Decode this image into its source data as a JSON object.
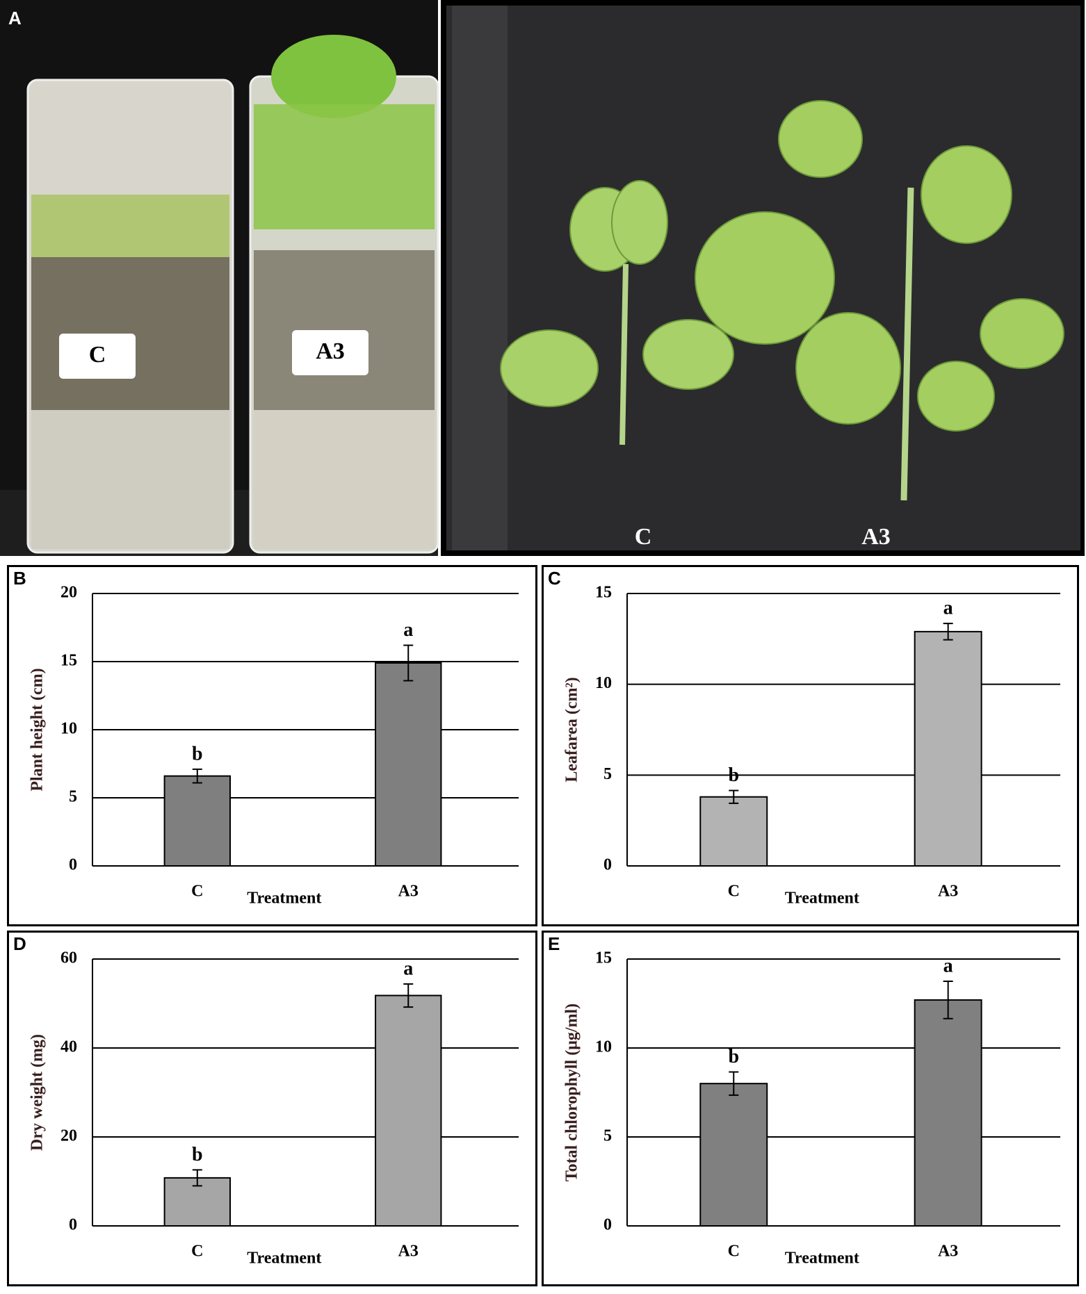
{
  "photo_panel": {
    "label": "A",
    "jar_labels": [
      "C",
      "A3"
    ],
    "plant_labels": [
      "C",
      "A3"
    ]
  },
  "chart_data": [
    {
      "label": "B",
      "type": "bar",
      "ylabel": "Plant height (cm)",
      "xlabel": "Treatment",
      "categories": [
        "C",
        "A3"
      ],
      "values": [
        6.6,
        14.9
      ],
      "errors": [
        0.5,
        1.3
      ],
      "letters": [
        "b",
        "a"
      ],
      "color": "#7f7f7f",
      "ylim": [
        0,
        20
      ],
      "yticks": [
        0,
        5,
        10,
        15,
        20
      ],
      "grid": true
    },
    {
      "label": "C",
      "type": "bar",
      "ylabel": "Leafarea (cm²)",
      "xlabel": "Treatment",
      "categories": [
        "C",
        "A3"
      ],
      "values": [
        3.8,
        12.9
      ],
      "errors": [
        0.35,
        0.45
      ],
      "letters": [
        "b",
        "a"
      ],
      "color": "#b3b3b3",
      "ylim": [
        0,
        15
      ],
      "yticks": [
        0,
        5,
        10,
        15
      ],
      "grid": true
    },
    {
      "label": "D",
      "type": "bar",
      "ylabel": "Dry weight (mg)",
      "xlabel": "Treatment",
      "categories": [
        "C",
        "A3"
      ],
      "values": [
        10.8,
        51.8
      ],
      "errors": [
        1.8,
        2.6
      ],
      "letters": [
        "b",
        "a"
      ],
      "color": "#a6a6a6",
      "ylim": [
        0,
        60
      ],
      "yticks": [
        0,
        20,
        40,
        60
      ],
      "grid": true
    },
    {
      "label": "E",
      "type": "bar",
      "ylabel": "Total chlorophyll (μg/ml)",
      "xlabel": "Treatment",
      "categories": [
        "C",
        "A3"
      ],
      "values": [
        8.0,
        12.7
      ],
      "errors": [
        0.65,
        1.05
      ],
      "letters": [
        "b",
        "a"
      ],
      "color": "#808080",
      "ylim": [
        0,
        15
      ],
      "yticks": [
        0,
        5,
        10,
        15
      ],
      "grid": true
    }
  ]
}
